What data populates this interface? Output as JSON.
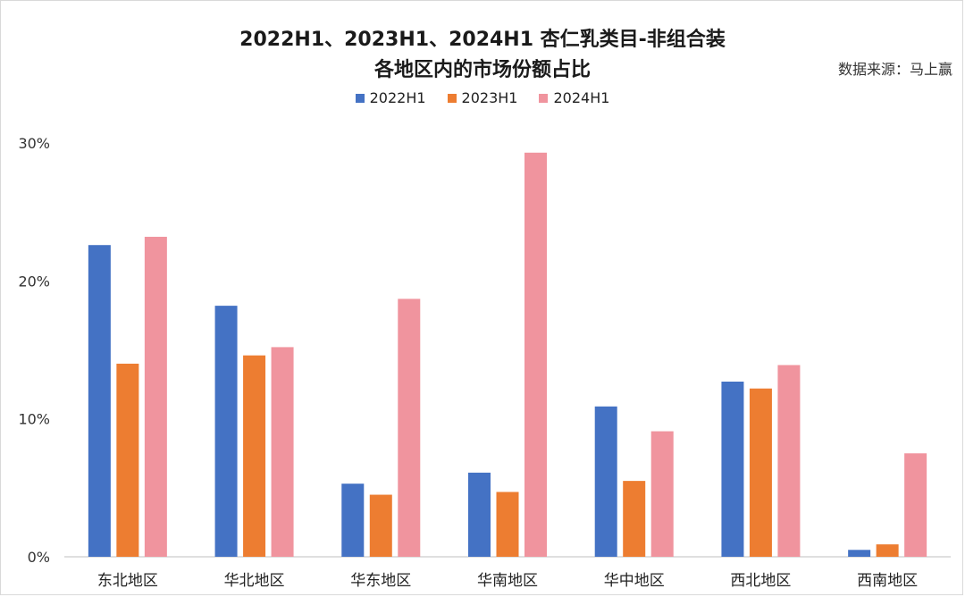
{
  "title": {
    "line1": "2022H1、2023H1、2024H1 杏仁乳类目-非组合装",
    "line2": "各地区内的市场份额占比"
  },
  "source": "数据来源：马上赢",
  "chart_data": {
    "type": "bar",
    "title": "2022H1、2023H1、2024H1 杏仁乳类目-非组合装 各地区内的市场份额占比",
    "categories": [
      "东北地区",
      "华北地区",
      "华东地区",
      "华南地区",
      "华中地区",
      "西北地区",
      "西南地区"
    ],
    "series": [
      {
        "name": "2022H1",
        "color": "#4472C4",
        "values": [
          22.6,
          18.2,
          5.3,
          6.1,
          10.9,
          12.7,
          0.5
        ]
      },
      {
        "name": "2023H1",
        "color": "#ED7D31",
        "values": [
          14.0,
          14.6,
          4.5,
          4.7,
          5.5,
          12.2,
          0.9
        ]
      },
      {
        "name": "2024H1",
        "color": "#F0949E",
        "values": [
          23.2,
          15.2,
          18.7,
          29.3,
          9.1,
          13.9,
          7.5
        ]
      }
    ],
    "ylim": [
      0,
      30
    ],
    "yticks": [
      "0%",
      "10%",
      "20%",
      "30%"
    ],
    "ytick_values": [
      0,
      10,
      20,
      30
    ],
    "legend_position": "top-center",
    "grid": false
  }
}
